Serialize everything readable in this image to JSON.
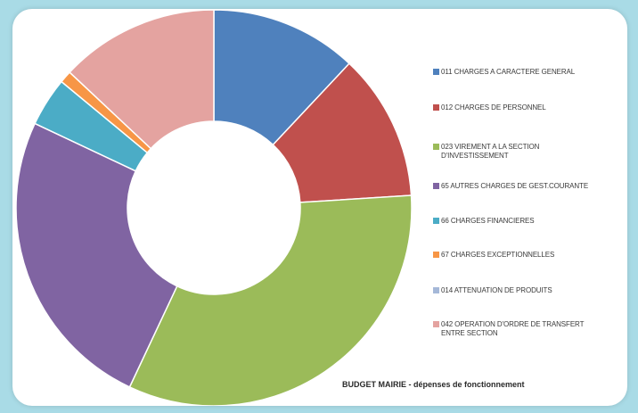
{
  "chart_data": {
    "type": "pie",
    "donut": true,
    "title": "BUDGET MAIRIE - dépenses de fonctionnement",
    "legend_position": "right",
    "slices": [
      {
        "label": "011 CHARGES A CARACTERE GENERAL",
        "value": 12,
        "color": "#4f81bd"
      },
      {
        "label": "012 CHARGES DE PERSONNEL",
        "value": 12,
        "color": "#c0504d"
      },
      {
        "label": "023 VIREMENT A LA SECTION D'INVESTISSEMENT",
        "value": 33,
        "color": "#9bbb59"
      },
      {
        "label": "65 AUTRES CHARGES DE GEST.COURANTE",
        "value": 25,
        "color": "#8064a2"
      },
      {
        "label": "66 CHARGES FINANCIERES",
        "value": 4,
        "color": "#4bacc6"
      },
      {
        "label": "67 CHARGES EXCEPTIONNELLES",
        "value": 1,
        "color": "#f79646"
      },
      {
        "label": "014 ATTENUATION DE PRODUITS",
        "value": 0,
        "color": "#a5b8d8"
      },
      {
        "label": "042 OPERATION D'ORDRE DE TRANSFERT ENTRE SECTION",
        "value": 13,
        "color": "#e4a3a0"
      }
    ]
  }
}
